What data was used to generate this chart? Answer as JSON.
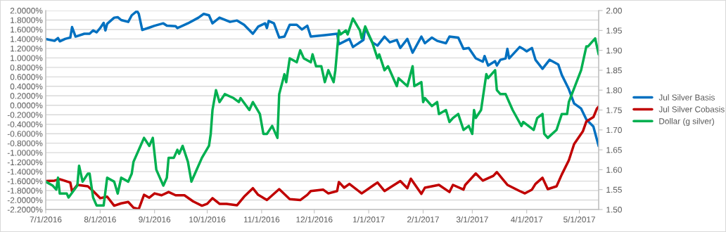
{
  "chart_data": {
    "type": "line",
    "xlim": [
      "2016-07-01",
      "2017-05-12"
    ],
    "xticks": [
      {
        "value": "2016-07-01",
        "label": "7/1/2016"
      },
      {
        "value": "2016-08-01",
        "label": "8/1/2016"
      },
      {
        "value": "2016-09-01",
        "label": "9/1/2016"
      },
      {
        "value": "2016-10-01",
        "label": "10/1/2016"
      },
      {
        "value": "2016-11-01",
        "label": "11/1/2016"
      },
      {
        "value": "2016-12-01",
        "label": "12/1/2016"
      },
      {
        "value": "2017-01-01",
        "label": "1/1/2017"
      },
      {
        "value": "2017-02-01",
        "label": "2/1/2017"
      },
      {
        "value": "2017-03-01",
        "label": "3/1/2017"
      },
      {
        "value": "2017-04-01",
        "label": "4/1/2017"
      },
      {
        "value": "2017-05-01",
        "label": "5/1/2017"
      }
    ],
    "ylim": [
      -2.2,
      2.0
    ],
    "yticks": [
      {
        "value": 2.0,
        "label": "2.0000%"
      },
      {
        "value": 1.8,
        "label": "1.8000%"
      },
      {
        "value": 1.6,
        "label": "1.6000%"
      },
      {
        "value": 1.4,
        "label": "1.4000%"
      },
      {
        "value": 1.2,
        "label": "1.2000%"
      },
      {
        "value": 1.0,
        "label": "1.0000%"
      },
      {
        "value": 0.8,
        "label": "0.8000%"
      },
      {
        "value": 0.6,
        "label": "0.6000%"
      },
      {
        "value": 0.4,
        "label": "0.4000%"
      },
      {
        "value": 0.2,
        "label": "0.2000%"
      },
      {
        "value": 0.0,
        "label": "0.0000%"
      },
      {
        "value": -0.2,
        "label": "-0.2000%"
      },
      {
        "value": -0.4,
        "label": "-0.4000%"
      },
      {
        "value": -0.6,
        "label": "-0.6000%"
      },
      {
        "value": -0.8,
        "label": "-0.8000%"
      },
      {
        "value": -1.0,
        "label": "-1.0000%"
      },
      {
        "value": -1.2,
        "label": "-1.2000%"
      },
      {
        "value": -1.4,
        "label": "-1.4000%"
      },
      {
        "value": -1.6,
        "label": "-1.6000%"
      },
      {
        "value": -1.8,
        "label": "-1.8000%"
      },
      {
        "value": -2.0,
        "label": "-2.0000%"
      },
      {
        "value": -2.2,
        "label": "-2.2000%"
      }
    ],
    "y2lim": [
      1.5,
      2.0
    ],
    "y2ticks": [
      {
        "value": 1.5,
        "label": "1.50"
      },
      {
        "value": 1.55,
        "label": "1.55"
      },
      {
        "value": 1.6,
        "label": "1.60"
      },
      {
        "value": 1.65,
        "label": "1.65"
      },
      {
        "value": 1.7,
        "label": "1.70"
      },
      {
        "value": 1.75,
        "label": "1.75"
      },
      {
        "value": 1.8,
        "label": "1.80"
      },
      {
        "value": 1.85,
        "label": "1.85"
      },
      {
        "value": 1.9,
        "label": "1.90"
      },
      {
        "value": 1.95,
        "label": "1.95"
      },
      {
        "value": 2.0,
        "label": "2.00"
      }
    ],
    "grid": "y",
    "legend": "right",
    "marker": "none",
    "line_style": "solid",
    "series": [
      {
        "name": "Jul Silver Basis",
        "color": "#0070c0",
        "x": [
          "2016-07-01",
          "2016-07-06",
          "2016-07-08",
          "2016-07-09",
          "2016-07-12",
          "2016-07-15",
          "2016-07-16",
          "2016-07-18",
          "2016-07-23",
          "2016-07-26",
          "2016-07-28",
          "2016-07-30",
          "2016-08-01",
          "2016-08-03",
          "2016-08-04",
          "2016-08-05",
          "2016-08-09",
          "2016-08-11",
          "2016-08-13",
          "2016-08-17",
          "2016-08-19",
          "2016-08-22",
          "2016-08-23",
          "2016-08-25",
          "2016-08-29",
          "2016-09-01",
          "2016-09-06",
          "2016-09-08",
          "2016-09-13",
          "2016-09-14",
          "2016-09-20",
          "2016-09-26",
          "2016-09-29",
          "2016-10-02",
          "2016-10-04",
          "2016-10-08",
          "2016-10-14",
          "2016-10-18",
          "2016-10-22",
          "2016-10-27",
          "2016-10-30",
          "2016-11-03",
          "2016-11-04",
          "2016-11-05",
          "2016-11-08",
          "2016-11-11",
          "2016-11-14",
          "2016-11-17",
          "2016-11-21",
          "2016-11-24",
          "2016-11-27",
          "2016-11-29",
          "2016-12-07",
          "2016-12-14",
          "2016-12-15",
          "2016-12-21",
          "2016-12-23",
          "2016-12-29",
          "2016-12-30",
          "2017-01-03",
          "2017-01-06",
          "2017-01-10",
          "2017-01-13",
          "2017-01-17",
          "2017-01-19",
          "2017-01-23",
          "2017-01-26",
          "2017-01-31",
          "2017-02-02",
          "2017-02-06",
          "2017-02-09",
          "2017-02-14",
          "2017-02-16",
          "2017-02-21",
          "2017-02-24",
          "2017-02-27",
          "2017-03-03",
          "2017-03-07",
          "2017-03-08",
          "2017-03-10",
          "2017-03-14",
          "2017-03-15",
          "2017-03-17",
          "2017-03-20",
          "2017-03-21",
          "2017-03-22",
          "2017-03-28",
          "2017-03-30",
          "2017-04-01",
          "2017-04-04",
          "2017-04-06",
          "2017-04-10",
          "2017-04-14",
          "2017-04-19",
          "2017-04-21",
          "2017-04-25",
          "2017-04-28",
          "2017-05-02",
          "2017-05-05",
          "2017-05-09",
          "2017-05-12"
        ],
        "values": [
          1.4,
          1.36,
          1.42,
          1.35,
          1.4,
          1.43,
          1.65,
          1.45,
          1.51,
          1.51,
          1.58,
          1.54,
          1.63,
          1.74,
          1.58,
          1.72,
          1.85,
          1.86,
          1.8,
          1.76,
          1.9,
          1.99,
          1.93,
          1.59,
          1.64,
          1.68,
          1.73,
          1.68,
          1.67,
          1.63,
          1.73,
          1.85,
          1.93,
          1.9,
          1.73,
          1.85,
          1.76,
          1.79,
          1.7,
          1.51,
          1.66,
          1.73,
          1.63,
          1.78,
          1.73,
          1.43,
          1.45,
          1.7,
          1.7,
          1.6,
          1.68,
          1.45,
          1.48,
          1.51,
          1.29,
          1.4,
          1.23,
          1.38,
          1.63,
          1.33,
          1.26,
          1.45,
          1.33,
          1.38,
          1.21,
          1.4,
          1.11,
          1.45,
          1.31,
          1.43,
          1.36,
          1.31,
          1.45,
          1.43,
          1.19,
          1.21,
          0.99,
          0.92,
          1.04,
          0.84,
          0.93,
          0.84,
          0.96,
          0.99,
          1.19,
          0.99,
          1.23,
          1.19,
          1.14,
          1.21,
          0.96,
          0.77,
          0.96,
          0.86,
          0.64,
          0.34,
          0.04,
          -0.07,
          -0.3,
          -0.45,
          -0.86
        ]
      },
      {
        "name": "Jul Silver Cobasis",
        "color": "#c00000",
        "x": [
          "2016-07-01",
          "2016-07-06",
          "2016-07-09",
          "2016-07-15",
          "2016-07-16",
          "2016-07-19",
          "2016-07-25",
          "2016-07-28",
          "2016-08-01",
          "2016-08-05",
          "2016-08-09",
          "2016-08-13",
          "2016-08-17",
          "2016-08-20",
          "2016-08-23",
          "2016-08-26",
          "2016-08-29",
          "2016-09-01",
          "2016-09-05",
          "2016-09-09",
          "2016-09-13",
          "2016-09-18",
          "2016-09-23",
          "2016-09-28",
          "2016-10-01",
          "2016-10-04",
          "2016-10-08",
          "2016-10-12",
          "2016-10-18",
          "2016-10-22",
          "2016-10-27",
          "2016-10-30",
          "2016-11-04",
          "2016-11-11",
          "2016-11-17",
          "2016-11-23",
          "2016-11-27",
          "2016-11-29",
          "2016-12-06",
          "2016-12-09",
          "2016-12-14",
          "2016-12-15",
          "2016-12-18",
          "2016-12-21",
          "2016-12-28",
          "2017-01-04",
          "2017-01-06",
          "2017-01-10",
          "2017-01-13",
          "2017-01-19",
          "2017-01-23",
          "2017-01-25",
          "2017-01-31",
          "2017-02-02",
          "2017-02-10",
          "2017-02-16",
          "2017-02-18",
          "2017-02-24",
          "2017-02-25",
          "2017-03-03",
          "2017-03-07",
          "2017-03-13",
          "2017-03-15",
          "2017-03-21",
          "2017-03-28",
          "2017-03-31",
          "2017-04-04",
          "2017-04-06",
          "2017-04-10",
          "2017-04-13",
          "2017-04-18",
          "2017-04-21",
          "2017-04-25",
          "2017-04-28",
          "2017-05-03",
          "2017-05-05",
          "2017-05-09",
          "2017-05-11",
          "2017-05-12"
        ],
        "values": [
          -1.6,
          -1.59,
          -1.56,
          -1.63,
          -1.82,
          -1.68,
          -1.71,
          -1.81,
          -1.96,
          -1.93,
          -2.12,
          -2.07,
          -2.04,
          -2.16,
          -2.19,
          -1.89,
          -1.95,
          -1.86,
          -1.9,
          -1.83,
          -1.9,
          -1.9,
          -2.03,
          -2.12,
          -2.08,
          -1.96,
          -2.08,
          -2.08,
          -2.11,
          -1.93,
          -1.75,
          -1.89,
          -2.0,
          -1.77,
          -1.98,
          -2.0,
          -1.89,
          -1.81,
          -1.78,
          -1.86,
          -1.81,
          -1.62,
          -1.74,
          -1.66,
          -1.86,
          -1.68,
          -1.63,
          -1.81,
          -1.74,
          -1.6,
          -1.75,
          -1.55,
          -1.87,
          -1.74,
          -1.68,
          -1.83,
          -1.68,
          -1.78,
          -1.68,
          -1.44,
          -1.59,
          -1.49,
          -1.41,
          -1.68,
          -1.81,
          -1.86,
          -1.78,
          -1.66,
          -1.53,
          -1.77,
          -1.71,
          -1.46,
          -1.16,
          -0.82,
          -0.55,
          -0.34,
          -0.25,
          -0.07,
          -0.03
        ]
      },
      {
        "name": "Dollar (g silver)",
        "color": "#00b050",
        "axis": "y2",
        "x": [
          "2016-07-01",
          "2016-07-05",
          "2016-07-07",
          "2016-07-08",
          "2016-07-09",
          "2016-07-13",
          "2016-07-14",
          "2016-07-19",
          "2016-07-20",
          "2016-07-22",
          "2016-07-25",
          "2016-07-26",
          "2016-07-28",
          "2016-07-30",
          "2016-08-03",
          "2016-08-05",
          "2016-08-09",
          "2016-08-11",
          "2016-08-13",
          "2016-08-17",
          "2016-08-19",
          "2016-08-20",
          "2016-08-24",
          "2016-08-26",
          "2016-08-29",
          "2016-08-31",
          "2016-09-02",
          "2016-09-06",
          "2016-09-08",
          "2016-09-09",
          "2016-09-12",
          "2016-09-14",
          "2016-09-15",
          "2016-09-17",
          "2016-09-20",
          "2016-09-22",
          "2016-09-24",
          "2016-09-28",
          "2016-10-02",
          "2016-10-03",
          "2016-10-04",
          "2016-10-06",
          "2016-10-08",
          "2016-10-11",
          "2016-10-16",
          "2016-10-19",
          "2016-10-20",
          "2016-10-25",
          "2016-10-27",
          "2016-10-31",
          "2016-11-02",
          "2016-11-04",
          "2016-11-07",
          "2016-11-10",
          "2016-11-11",
          "2016-11-14",
          "2016-11-15",
          "2016-11-17",
          "2016-11-21",
          "2016-11-23",
          "2016-11-25",
          "2016-11-29",
          "2016-11-30",
          "2016-12-02",
          "2016-12-05",
          "2016-12-07",
          "2016-12-09",
          "2016-12-12",
          "2016-12-13",
          "2016-12-15",
          "2016-12-16",
          "2016-12-19",
          "2016-12-20",
          "2016-12-23",
          "2016-12-27",
          "2016-12-28",
          "2016-12-30",
          "2017-01-03",
          "2017-01-06",
          "2017-01-07",
          "2017-01-10",
          "2017-01-12",
          "2017-01-17",
          "2017-01-18",
          "2017-01-23",
          "2017-01-26",
          "2017-01-27",
          "2017-01-31",
          "2017-02-01",
          "2017-02-02",
          "2017-02-06",
          "2017-02-09",
          "2017-02-10",
          "2017-02-14",
          "2017-02-16",
          "2017-02-18",
          "2017-02-21",
          "2017-02-24",
          "2017-02-27",
          "2017-03-01",
          "2017-03-02",
          "2017-03-03",
          "2017-03-06",
          "2017-03-09",
          "2017-03-10",
          "2017-03-14",
          "2017-03-15",
          "2017-03-17",
          "2017-03-20",
          "2017-03-22",
          "2017-03-24",
          "2017-03-29",
          "2017-03-30",
          "2017-04-02",
          "2017-04-05",
          "2017-04-07",
          "2017-04-10",
          "2017-04-11",
          "2017-04-13",
          "2017-04-18",
          "2017-04-21",
          "2017-04-24",
          "2017-04-25",
          "2017-05-02",
          "2017-05-05",
          "2017-05-06",
          "2017-05-10",
          "2017-05-12"
        ],
        "values": [
          1.57,
          1.56,
          1.55,
          1.58,
          1.54,
          1.54,
          1.53,
          1.56,
          1.61,
          1.57,
          1.59,
          1.59,
          1.53,
          1.51,
          1.51,
          1.58,
          1.57,
          1.54,
          1.58,
          1.57,
          1.59,
          1.62,
          1.66,
          1.68,
          1.66,
          1.68,
          1.6,
          1.56,
          1.58,
          1.63,
          1.63,
          1.65,
          1.64,
          1.66,
          1.62,
          1.57,
          1.59,
          1.63,
          1.66,
          1.69,
          1.75,
          1.8,
          1.77,
          1.79,
          1.78,
          1.77,
          1.78,
          1.75,
          1.77,
          1.74,
          1.69,
          1.69,
          1.71,
          1.68,
          1.79,
          1.84,
          1.82,
          1.88,
          1.87,
          1.9,
          1.88,
          1.87,
          1.89,
          1.86,
          1.86,
          1.82,
          1.85,
          1.82,
          1.85,
          1.95,
          1.94,
          1.95,
          1.94,
          1.98,
          1.95,
          1.93,
          1.96,
          1.92,
          1.88,
          1.89,
          1.85,
          1.86,
          1.81,
          1.83,
          1.81,
          1.86,
          1.81,
          1.82,
          1.77,
          1.78,
          1.76,
          1.77,
          1.74,
          1.75,
          1.72,
          1.73,
          1.74,
          1.7,
          1.71,
          1.69,
          1.75,
          1.73,
          1.75,
          1.84,
          1.83,
          1.85,
          1.8,
          1.79,
          1.79,
          1.77,
          1.75,
          1.71,
          1.72,
          1.71,
          1.7,
          1.73,
          1.74,
          1.69,
          1.68,
          1.7,
          1.74,
          1.74,
          1.77,
          1.85,
          1.91,
          1.91,
          1.93,
          1.89
        ]
      }
    ]
  }
}
